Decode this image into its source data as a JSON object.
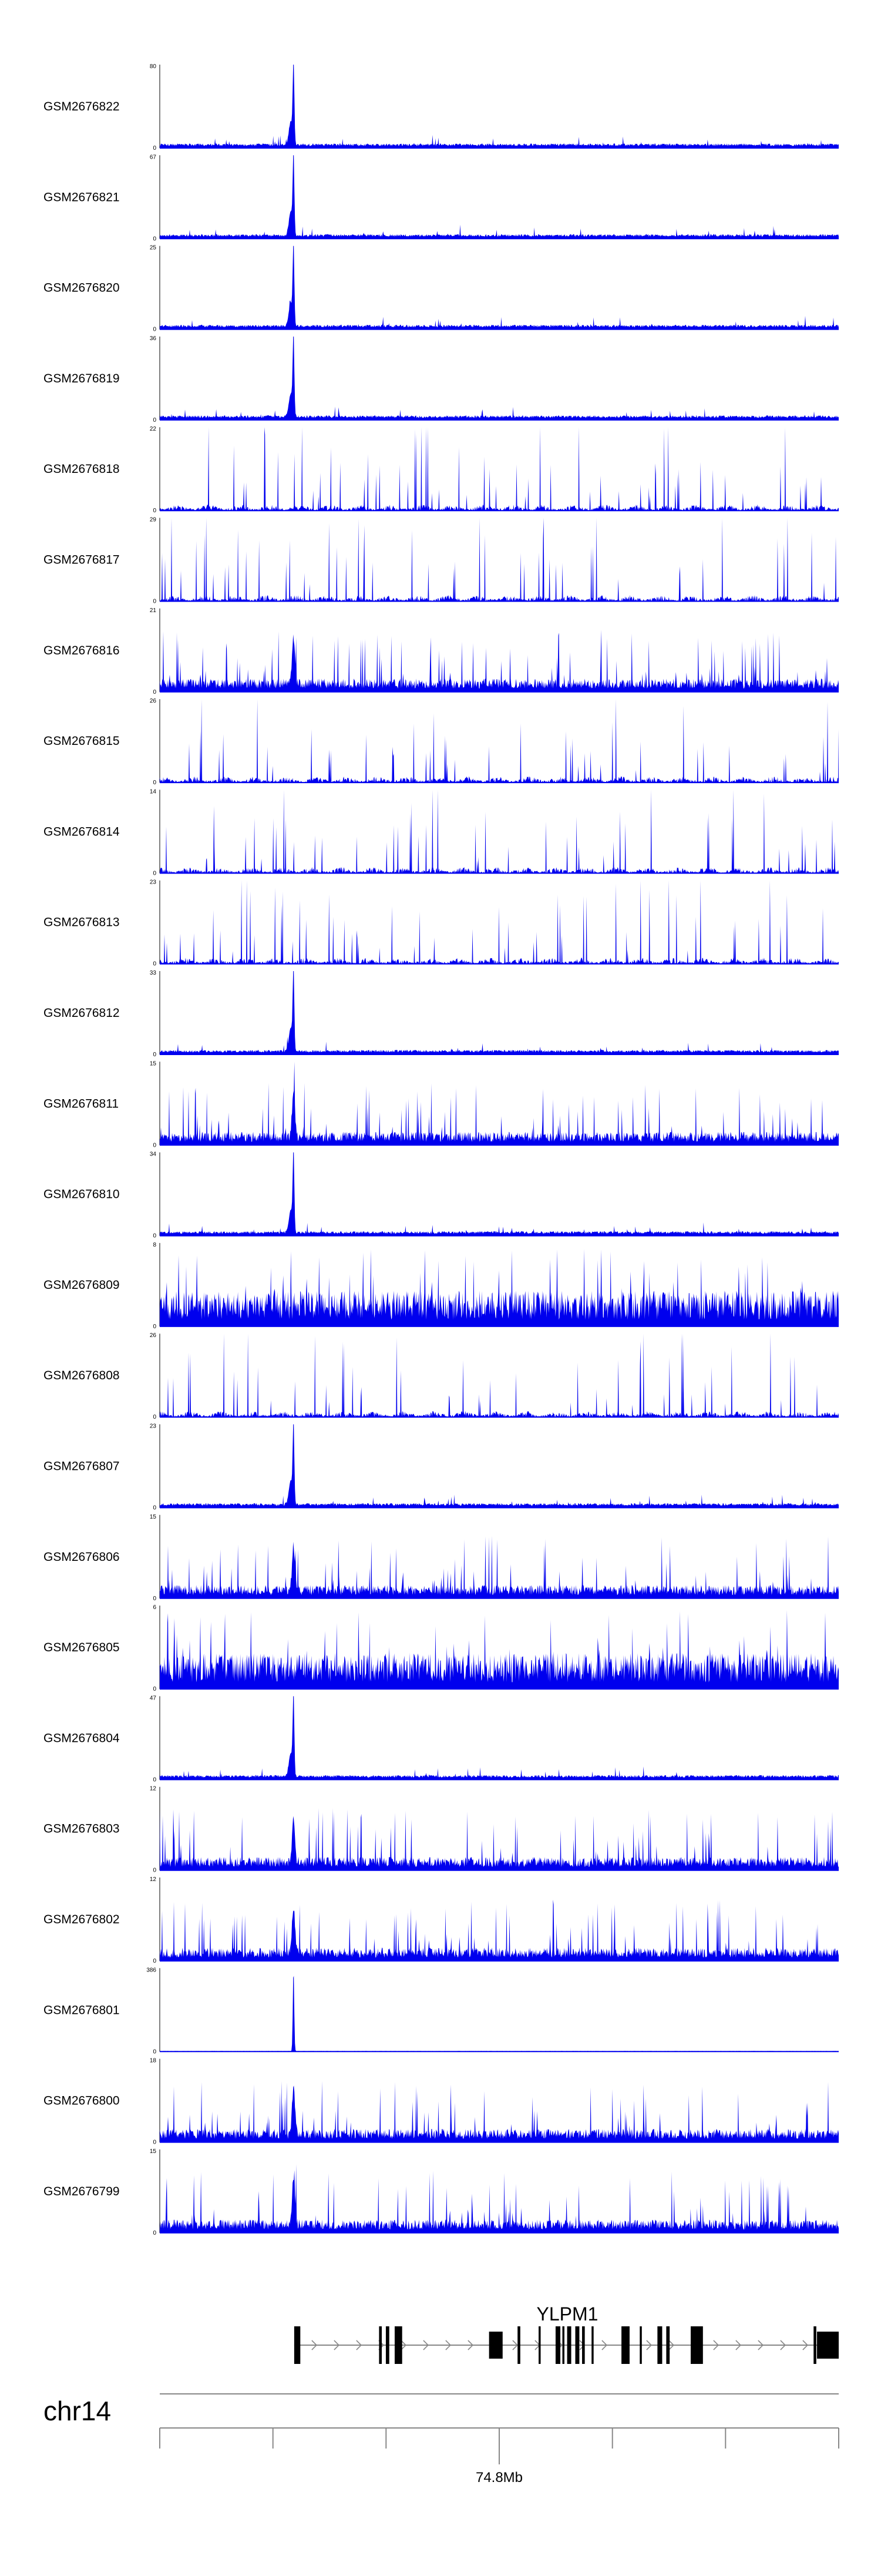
{
  "chart_data": {
    "type": "area",
    "title": "",
    "xlabel": "",
    "ylabel": "",
    "series_color": "#0000ee",
    "series": [
      {
        "name": "GSM2676822",
        "ymax": 80,
        "ymin": 0,
        "profile": "peak"
      },
      {
        "name": "GSM2676821",
        "ymax": 67,
        "ymin": 0,
        "profile": "peak"
      },
      {
        "name": "GSM2676820",
        "ymax": 25,
        "ymin": 0,
        "profile": "peak"
      },
      {
        "name": "GSM2676819",
        "ymax": 36,
        "ymin": 0,
        "profile": "peak"
      },
      {
        "name": "GSM2676818",
        "ymax": 22,
        "ymin": 0,
        "profile": "sparse"
      },
      {
        "name": "GSM2676817",
        "ymax": 29,
        "ymin": 0,
        "profile": "sparse"
      },
      {
        "name": "GSM2676816",
        "ymax": 21,
        "ymin": 0,
        "profile": "medium"
      },
      {
        "name": "GSM2676815",
        "ymax": 26,
        "ymin": 0,
        "profile": "sparse"
      },
      {
        "name": "GSM2676814",
        "ymax": 14,
        "ymin": 0,
        "profile": "sparse"
      },
      {
        "name": "GSM2676813",
        "ymax": 23,
        "ymin": 0,
        "profile": "sparse"
      },
      {
        "name": "GSM2676812",
        "ymax": 33,
        "ymin": 0,
        "profile": "peak"
      },
      {
        "name": "GSM2676811",
        "ymax": 15,
        "ymin": 0,
        "profile": "medium"
      },
      {
        "name": "GSM2676810",
        "ymax": 34,
        "ymin": 0,
        "profile": "peak"
      },
      {
        "name": "GSM2676809",
        "ymax": 8,
        "ymin": 0,
        "profile": "dense"
      },
      {
        "name": "GSM2676808",
        "ymax": 26,
        "ymin": 0,
        "profile": "sparse"
      },
      {
        "name": "GSM2676807",
        "ymax": 23,
        "ymin": 0,
        "profile": "peak"
      },
      {
        "name": "GSM2676806",
        "ymax": 15,
        "ymin": 0,
        "profile": "medium"
      },
      {
        "name": "GSM2676805",
        "ymax": 6,
        "ymin": 0,
        "profile": "dense"
      },
      {
        "name": "GSM2676804",
        "ymax": 47,
        "ymin": 0,
        "profile": "peak"
      },
      {
        "name": "GSM2676803",
        "ymax": 12,
        "ymin": 0,
        "profile": "medium"
      },
      {
        "name": "GSM2676802",
        "ymax": 12,
        "ymin": 0,
        "profile": "medium"
      },
      {
        "name": "GSM2676801",
        "ymax": 386,
        "ymin": 0,
        "profile": "spike"
      },
      {
        "name": "GSM2676800",
        "ymax": 18,
        "ymin": 0,
        "profile": "medium"
      },
      {
        "name": "GSM2676799",
        "ymax": 15,
        "ymin": 0,
        "profile": "medium"
      }
    ],
    "gene": {
      "name": "YLPM1",
      "exons": [
        [
          0.198,
          0.207
        ],
        [
          0.323,
          0.327
        ],
        [
          0.333,
          0.338
        ],
        [
          0.346,
          0.357
        ],
        [
          0.485,
          0.505
        ],
        [
          0.527,
          0.531
        ],
        [
          0.558,
          0.561
        ],
        [
          0.583,
          0.59
        ],
        [
          0.593,
          0.596
        ],
        [
          0.6,
          0.606
        ],
        [
          0.612,
          0.618
        ],
        [
          0.622,
          0.626
        ],
        [
          0.636,
          0.639
        ],
        [
          0.68,
          0.692
        ],
        [
          0.707,
          0.71
        ],
        [
          0.733,
          0.74
        ],
        [
          0.746,
          0.751
        ],
        [
          0.782,
          0.8
        ],
        [
          0.963,
          0.967
        ],
        [
          0.968,
          1.0
        ]
      ]
    },
    "chromosome": "chr14",
    "axis": {
      "labeled_tick": "74.8Mb",
      "tick_fractions": [
        0.0,
        0.1667,
        0.3333,
        0.5,
        0.6667,
        0.8333,
        1.0
      ],
      "labeled_index": 3
    }
  }
}
